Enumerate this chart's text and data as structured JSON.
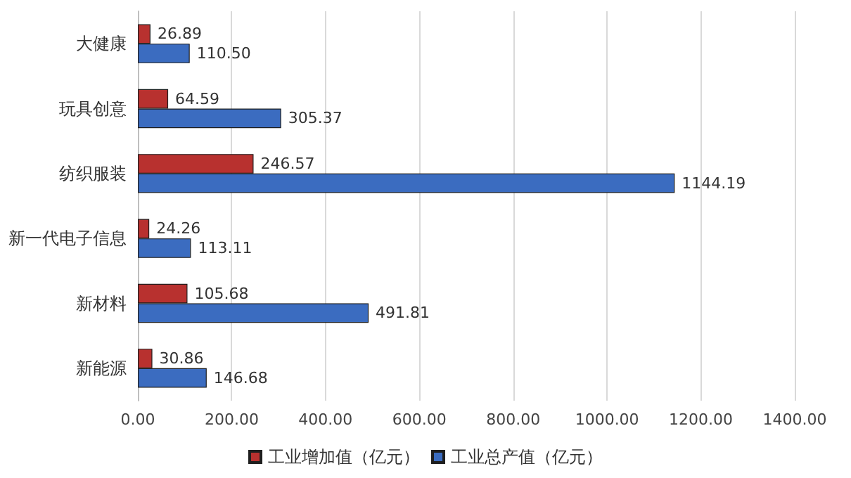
{
  "chart_data": {
    "type": "bar",
    "orientation": "horizontal",
    "categories": [
      "大健康",
      "玩具创意",
      "纺织服装",
      "新一代电子信息",
      "新材料",
      "新能源"
    ],
    "series": [
      {
        "name": "工业增加值（亿元）",
        "color": "#b8312f",
        "values": [
          26.89,
          64.59,
          246.57,
          24.26,
          105.68,
          30.86
        ],
        "value_labels": [
          "26.89",
          "64.59",
          "246.57",
          "24.26",
          "105.68",
          "30.86"
        ]
      },
      {
        "name": "工业总产值（亿元）",
        "color": "#3b6cc0",
        "values": [
          110.5,
          305.37,
          1144.19,
          113.11,
          491.81,
          146.68
        ],
        "value_labels": [
          "110.50",
          "305.37",
          "1144.19",
          "113.11",
          "491.81",
          "146.68"
        ]
      }
    ],
    "xlim": [
      0,
      1400
    ],
    "xticks": [
      {
        "value": 0,
        "label": "0.00"
      },
      {
        "value": 200,
        "label": "200.00"
      },
      {
        "value": 400,
        "label": "400.00"
      },
      {
        "value": 600,
        "label": "600.00"
      },
      {
        "value": 800,
        "label": "800.00"
      },
      {
        "value": 1000,
        "label": "1000.00"
      },
      {
        "value": 1200,
        "label": "1200.00"
      },
      {
        "value": 1400,
        "label": "1400.00"
      }
    ],
    "grid": "x",
    "legend": "bottom"
  }
}
